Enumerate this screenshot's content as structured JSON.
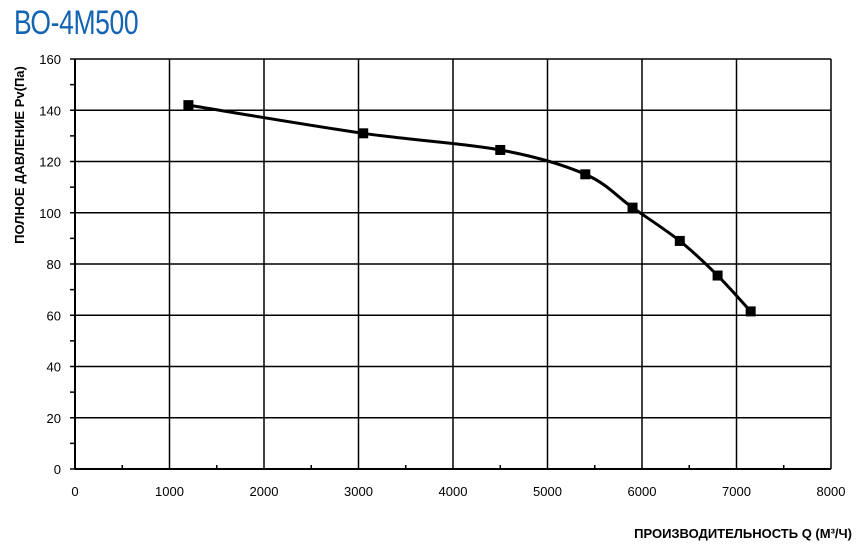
{
  "chart_data": {
    "type": "line",
    "title": "ВО-4М500",
    "xlabel": "ПРОИЗВОДИТЕЛЬНОСТЬ  Q  (М³/Ч)",
    "ylabel": "ПОЛНОЕ ДАВЛЕНИЕ  Pv(Па)",
    "xlim": [
      0,
      8000
    ],
    "ylim": [
      0,
      160
    ],
    "xticks": [
      0,
      1000,
      2000,
      3000,
      4000,
      5000,
      6000,
      7000,
      8000
    ],
    "yticks": [
      0,
      20,
      40,
      60,
      80,
      100,
      120,
      140,
      160
    ],
    "grid": true,
    "colors": {
      "title": "#1464b4",
      "line": "#000000"
    },
    "series": [
      {
        "x": [
          1200,
          3050,
          4500,
          5400,
          5900,
          6400,
          6800,
          7150
        ],
        "y": [
          142,
          131,
          124.5,
          115,
          102,
          89,
          75.5,
          61.5
        ]
      }
    ]
  }
}
